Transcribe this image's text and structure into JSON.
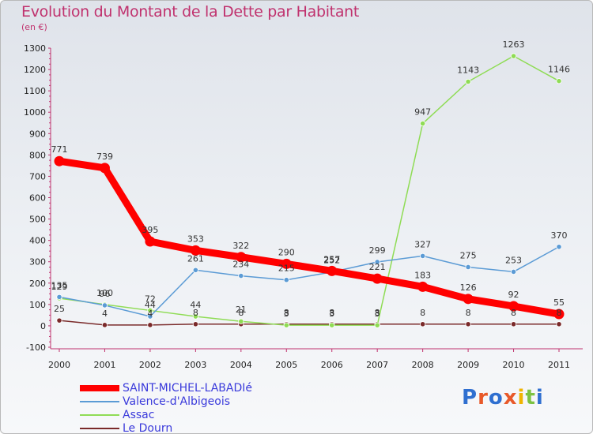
{
  "title": "Evolution du Montant de la Dette par Habitant",
  "subtitle": "(en €)",
  "logo": {
    "text": "Proxiti",
    "letters": [
      "P",
      "r",
      "o",
      "x",
      "i",
      "t",
      "i"
    ],
    "colors": [
      "#2f6fd0",
      "#e8592a",
      "#2f6fd0",
      "#e8592a",
      "#f0b400",
      "#7cc242",
      "#2f6fd0"
    ]
  },
  "chart_data": {
    "type": "line",
    "title": "Evolution du Montant de la Dette par Habitant",
    "subtitle": "(en €)",
    "x": [
      "2000",
      "2001",
      "2002",
      "2003",
      "2004",
      "2005",
      "2006",
      "2007",
      "2008",
      "2009",
      "2010",
      "2011"
    ],
    "ylim": [
      -100,
      1300
    ],
    "yticks": [
      -100,
      0,
      100,
      200,
      300,
      400,
      500,
      600,
      700,
      800,
      900,
      1000,
      1100,
      1200,
      1300
    ],
    "grid": false,
    "legend_position": "bottom-left",
    "series": [
      {
        "name": "SAINT-MICHEL-LABADIé",
        "color": "#ff0000",
        "values": [
          771,
          739,
          395,
          353,
          322,
          290,
          257,
          221,
          183,
          126,
          92,
          55
        ],
        "labels": [
          "771",
          "739",
          "395",
          "353",
          "322",
          "290",
          "257",
          "221",
          "183",
          "126",
          "92",
          "55"
        ]
      },
      {
        "name": "Valence-d'Albigeois",
        "color": "#5b9bd5",
        "values": [
          135,
          96,
          44,
          261,
          234,
          215,
          252,
          299,
          327,
          275,
          253,
          370
        ],
        "labels": [
          "135",
          "96",
          "44",
          "261",
          "234",
          "215",
          "252",
          "299",
          "327",
          "275",
          "253",
          "370"
        ]
      },
      {
        "name": "Assac",
        "color": "#8fdc55",
        "values": [
          129,
          100,
          72,
          44,
          21,
          3,
          3,
          3,
          947,
          1143,
          1263,
          1146
        ],
        "labels": [
          "129",
          "100",
          "72",
          "44",
          "21",
          "3",
          "3",
          "3",
          "947",
          "1143",
          "1263",
          "1146"
        ]
      },
      {
        "name": "Le Dourn",
        "color": "#7a2a2a",
        "values": [
          25,
          4,
          4,
          8,
          8,
          8,
          8,
          8,
          8,
          8,
          8,
          8
        ],
        "labels": [
          "25",
          "4",
          "4",
          "8",
          "8",
          "8",
          "8",
          "8",
          "8",
          "8",
          "8",
          "8"
        ]
      }
    ]
  }
}
